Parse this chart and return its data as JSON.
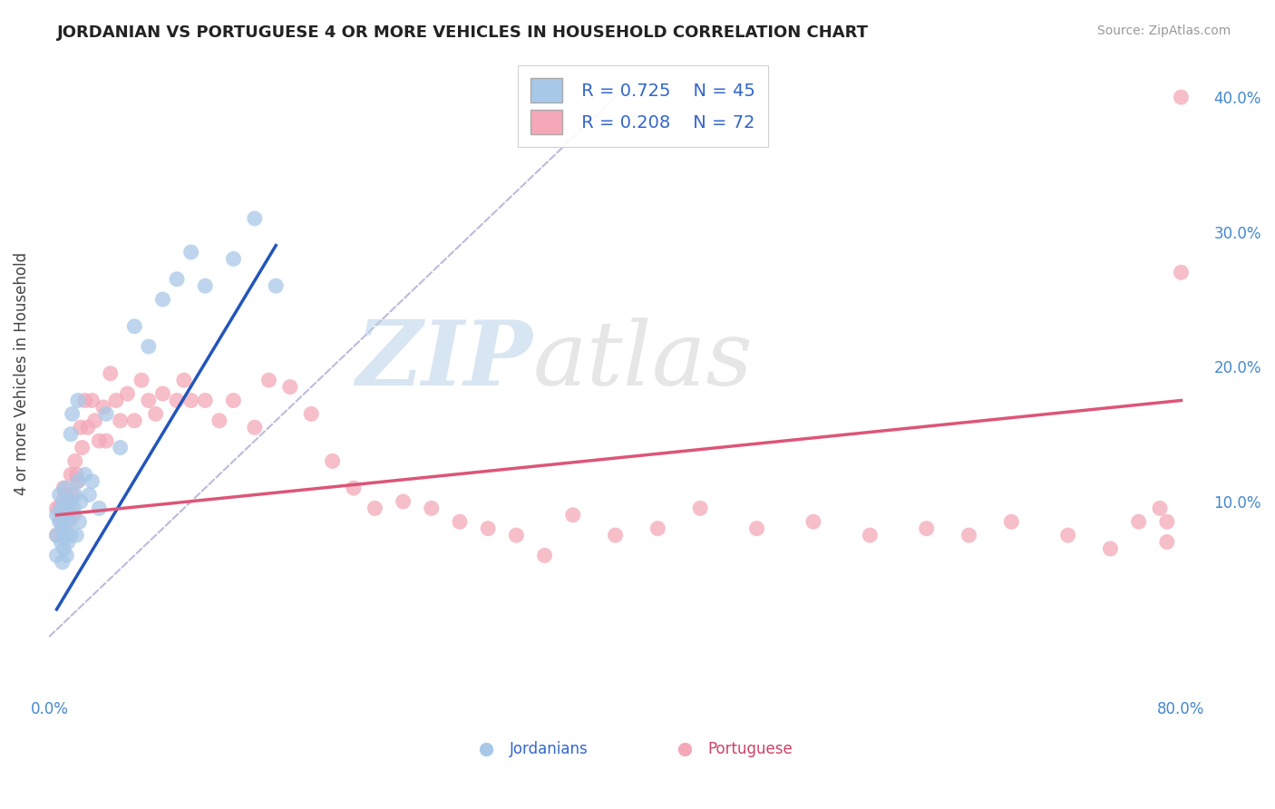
{
  "title": "JORDANIAN VS PORTUGUESE 4 OR MORE VEHICLES IN HOUSEHOLD CORRELATION CHART",
  "source_text": "Source: ZipAtlas.com",
  "ylabel": "4 or more Vehicles in Household",
  "xlim": [
    -0.005,
    0.82
  ],
  "ylim": [
    -0.045,
    0.435
  ],
  "xticks": [
    0.0,
    0.1,
    0.2,
    0.3,
    0.4,
    0.5,
    0.6,
    0.7,
    0.8
  ],
  "xtick_labels": [
    "0.0%",
    "",
    "",
    "",
    "",
    "",
    "",
    "",
    "80.0%"
  ],
  "yticks_right": [
    0.0,
    0.1,
    0.2,
    0.3,
    0.4
  ],
  "ytick_labels_right": [
    "",
    "10.0%",
    "20.0%",
    "30.0%",
    "40.0%"
  ],
  "grid_color": "#cccccc",
  "background_color": "#ffffff",
  "watermark_zip": "ZIP",
  "watermark_atlas": "atlas",
  "jordanian_color": "#a8c8e8",
  "portuguese_color": "#f4a8b8",
  "jordanian_line_color": "#2255bb",
  "portuguese_line_color": "#dd5577",
  "ref_line_color": "#bbbbdd",
  "legend_r1": "R = 0.725",
  "legend_n1": "N = 45",
  "legend_r2": "R = 0.208",
  "legend_n2": "N = 72",
  "jordanian_label": "Jordanians",
  "portuguese_label": "Portuguese",
  "jordanian_x": [
    0.005,
    0.005,
    0.005,
    0.007,
    0.007,
    0.008,
    0.008,
    0.009,
    0.009,
    0.01,
    0.01,
    0.01,
    0.011,
    0.011,
    0.012,
    0.012,
    0.013,
    0.013,
    0.014,
    0.015,
    0.015,
    0.016,
    0.017,
    0.018,
    0.019,
    0.02,
    0.021,
    0.022,
    0.025,
    0.028,
    0.03,
    0.035,
    0.04,
    0.05,
    0.06,
    0.07,
    0.08,
    0.09,
    0.1,
    0.11,
    0.13,
    0.145,
    0.16,
    0.02,
    0.015
  ],
  "jordanian_y": [
    0.09,
    0.075,
    0.06,
    0.105,
    0.085,
    0.095,
    0.07,
    0.08,
    0.055,
    0.1,
    0.085,
    0.065,
    0.11,
    0.075,
    0.09,
    0.06,
    0.095,
    0.07,
    0.085,
    0.1,
    0.075,
    0.165,
    0.095,
    0.105,
    0.075,
    0.115,
    0.085,
    0.1,
    0.12,
    0.105,
    0.115,
    0.095,
    0.165,
    0.14,
    0.23,
    0.215,
    0.25,
    0.265,
    0.285,
    0.26,
    0.28,
    0.31,
    0.26,
    0.175,
    0.15
  ],
  "portuguese_x": [
    0.005,
    0.005,
    0.007,
    0.008,
    0.009,
    0.01,
    0.01,
    0.011,
    0.012,
    0.013,
    0.014,
    0.015,
    0.016,
    0.017,
    0.018,
    0.019,
    0.02,
    0.022,
    0.023,
    0.025,
    0.027,
    0.03,
    0.032,
    0.035,
    0.038,
    0.04,
    0.043,
    0.047,
    0.05,
    0.055,
    0.06,
    0.065,
    0.07,
    0.075,
    0.08,
    0.09,
    0.095,
    0.1,
    0.11,
    0.12,
    0.13,
    0.145,
    0.155,
    0.17,
    0.185,
    0.2,
    0.215,
    0.23,
    0.25,
    0.27,
    0.29,
    0.31,
    0.33,
    0.35,
    0.37,
    0.4,
    0.43,
    0.46,
    0.5,
    0.54,
    0.58,
    0.62,
    0.65,
    0.68,
    0.72,
    0.75,
    0.77,
    0.79,
    0.8,
    0.8,
    0.79,
    0.785
  ],
  "portuguese_y": [
    0.095,
    0.075,
    0.095,
    0.085,
    0.1,
    0.11,
    0.09,
    0.105,
    0.085,
    0.1,
    0.095,
    0.12,
    0.105,
    0.09,
    0.13,
    0.12,
    0.115,
    0.155,
    0.14,
    0.175,
    0.155,
    0.175,
    0.16,
    0.145,
    0.17,
    0.145,
    0.195,
    0.175,
    0.16,
    0.18,
    0.16,
    0.19,
    0.175,
    0.165,
    0.18,
    0.175,
    0.19,
    0.175,
    0.175,
    0.16,
    0.175,
    0.155,
    0.19,
    0.185,
    0.165,
    0.13,
    0.11,
    0.095,
    0.1,
    0.095,
    0.085,
    0.08,
    0.075,
    0.06,
    0.09,
    0.075,
    0.08,
    0.095,
    0.08,
    0.085,
    0.075,
    0.08,
    0.075,
    0.085,
    0.075,
    0.065,
    0.085,
    0.07,
    0.4,
    0.27,
    0.085,
    0.095
  ],
  "jordanian_line_x": [
    0.005,
    0.16
  ],
  "jordanian_line_y": [
    0.02,
    0.29
  ],
  "portuguese_line_x": [
    0.005,
    0.8
  ],
  "portuguese_line_y": [
    0.09,
    0.175
  ]
}
